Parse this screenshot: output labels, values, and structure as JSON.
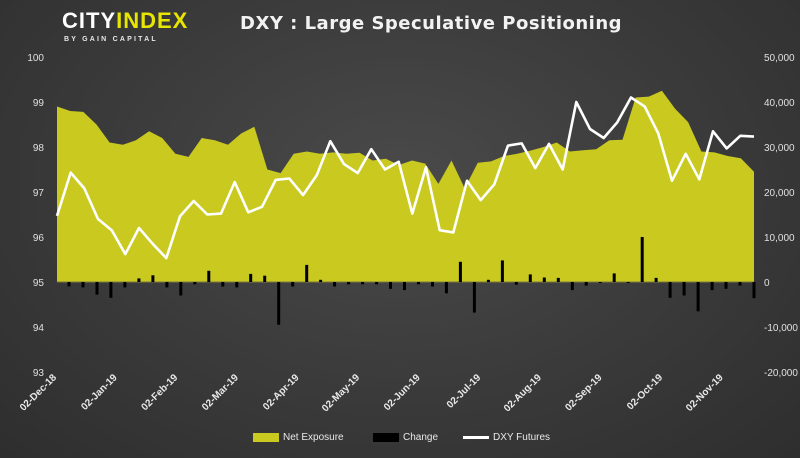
{
  "logo": {
    "part1": "CITY",
    "part2": "INDEX",
    "sub": "BY GAIN CAPITAL"
  },
  "title": "DXY : Large Speculative Positioning",
  "colors": {
    "area": "#c9c920",
    "bar": "#000000",
    "line": "#ffffff",
    "text": "#e0e0e0"
  },
  "chart_data": {
    "type": "line",
    "title": "DXY : Large Speculative Positioning",
    "left_axis": {
      "range": [
        93,
        100
      ],
      "ticks": [
        "100",
        "99",
        "98",
        "97",
        "96",
        "95",
        "94",
        "93"
      ],
      "values": [
        100,
        99,
        98,
        97,
        96,
        95,
        94,
        93
      ]
    },
    "right_axis": {
      "range": [
        -20000,
        50000
      ],
      "ticks": [
        "50,000",
        "40,000",
        "30,000",
        "20,000",
        "10,000",
        "0",
        "-10,000",
        "-20,000"
      ],
      "values": [
        50000,
        40000,
        30000,
        20000,
        10000,
        0,
        -10000,
        -20000
      ]
    },
    "x_ticks": [
      "02-Dec-18",
      "02-Jan-19",
      "02-Feb-19",
      "02-Mar-19",
      "02-Apr-19",
      "02-May-19",
      "02-Jun-19",
      "02-Jul-19",
      "02-Aug-19",
      "02-Sep-19",
      "02-Oct-19",
      "02-Nov-19"
    ],
    "gridlines": false,
    "legend_position": "bottom",
    "series": [
      {
        "name": "Net Exposure",
        "type": "area",
        "axis": "right",
        "values": [
          39000,
          38000,
          37800,
          35000,
          31000,
          30500,
          31500,
          33500,
          32000,
          28500,
          27800,
          32000,
          31500,
          30500,
          33000,
          34500,
          25000,
          24200,
          28500,
          29000,
          28500,
          28800,
          28500,
          28700,
          27000,
          27400,
          26000,
          27000,
          26300,
          21800,
          27000,
          20800,
          26500,
          26800,
          28000,
          28500,
          29200,
          30000,
          31000,
          29000,
          29300,
          29500,
          31500,
          31600,
          41000,
          41200,
          42500,
          38500,
          35500,
          29000,
          28800,
          28000,
          27500,
          24500
        ]
      },
      {
        "name": "Change",
        "type": "bar",
        "axis": "right",
        "values": [
          -1000,
          -1200,
          -2800,
          -3500,
          -1200,
          800,
          1500,
          -1200,
          -3000,
          -500,
          2500,
          -1000,
          -1200,
          1800,
          1400,
          -9500,
          -1000,
          3800,
          500,
          -1000,
          -500,
          -500,
          -500,
          -1500,
          -1800,
          -500,
          -1000,
          -2500,
          4500,
          -6800,
          500,
          4800,
          -600,
          1700,
          1000,
          900,
          -1800,
          -800,
          -200,
          1900,
          -200,
          10000,
          900,
          -3500,
          -3000,
          -6500,
          -1800,
          -1500,
          -800,
          -3600
        ]
      },
      {
        "name": "DXY Futures",
        "type": "line",
        "axis": "left",
        "values": [
          96.47,
          97.43,
          97.08,
          96.4,
          96.15,
          95.62,
          96.2,
          95.85,
          95.53,
          96.46,
          96.8,
          96.5,
          96.52,
          97.22,
          96.55,
          96.67,
          97.27,
          97.3,
          96.93,
          97.37,
          98.13,
          97.62,
          97.42,
          97.95,
          97.5,
          97.67,
          96.52,
          97.55,
          96.15,
          96.1,
          97.25,
          96.82,
          97.17,
          98.03,
          98.08,
          97.53,
          98.07,
          97.5,
          99.0,
          98.4,
          98.2,
          98.55,
          99.1,
          98.9,
          98.3,
          97.25,
          97.85,
          97.28,
          98.35,
          97.97,
          98.25,
          98.23
        ]
      }
    ]
  },
  "legend": {
    "net_exposure": "Net Exposure",
    "change": "Change",
    "dxy": "DXY Futures"
  }
}
